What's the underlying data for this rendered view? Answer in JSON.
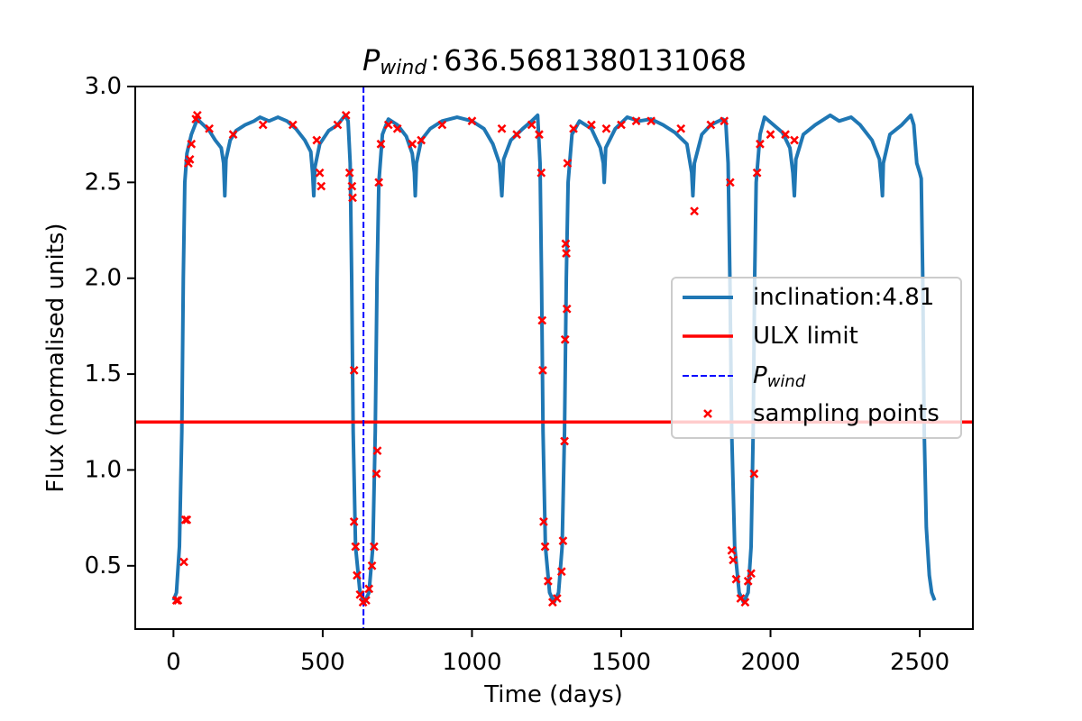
{
  "chart_data": {
    "type": "line",
    "title": {
      "symbol": "P",
      "subscript": "wind",
      "separator": ":"
    },
    "xlabel": "Time (days)",
    "ylabel": "Flux (normalised units)",
    "xlim": [
      -128,
      2678
    ],
    "ylim": [
      0.17,
      3.0
    ],
    "xticks": [
      0,
      500,
      1000,
      1500,
      2000,
      2500
    ],
    "yticks": [
      0.5,
      {
        "value": 1,
        "label": "1.0"
      },
      1.5,
      {
        "value": 2,
        "label": "2.0"
      },
      2.5,
      {
        "value": 3,
        "label": "3.0"
      }
    ],
    "legend": "center right",
    "series": [
      {
        "name": "inclination:4.81",
        "color": "#1f77b4",
        "x": [
          0,
          10,
          20,
          28,
          33,
          38,
          45,
          60,
          80,
          100,
          120,
          140,
          160,
          168,
          172,
          176,
          190,
          210,
          240,
          270,
          290,
          320,
          350,
          380,
          410,
          440,
          460,
          466,
          470,
          474,
          490,
          520,
          550,
          575,
          585,
          592,
          597,
          602,
          610,
          625,
          640,
          655,
          668,
          676,
          682,
          688,
          700,
          720,
          750,
          780,
          800,
          807,
          810,
          814,
          830,
          860,
          900,
          950,
          1000,
          1040,
          1070,
          1092,
          1100,
          1106,
          1130,
          1170,
          1200,
          1220,
          1228,
          1233,
          1238,
          1246,
          1260,
          1275,
          1290,
          1302,
          1310,
          1316,
          1322,
          1335,
          1360,
          1400,
          1430,
          1440,
          1443,
          1448,
          1480,
          1520,
          1560,
          1600,
          1640,
          1680,
          1720,
          1736,
          1740,
          1745,
          1770,
          1800,
          1840,
          1850,
          1858,
          1864,
          1870,
          1880,
          1895,
          1910,
          1925,
          1935,
          1942,
          1947,
          1952,
          1965,
          1980,
          2010,
          2040,
          2065,
          2075,
          2080,
          2085,
          2110,
          2150,
          2200,
          2230,
          2270,
          2300,
          2340,
          2365,
          2372,
          2375,
          2378,
          2400,
          2440,
          2470,
          2480,
          2490,
          2500,
          2505,
          2510,
          2515,
          2522,
          2532,
          2540,
          2550
        ],
        "values": [
          0.32,
          0.36,
          0.6,
          1.2,
          2.0,
          2.5,
          2.65,
          2.75,
          2.83,
          2.8,
          2.77,
          2.72,
          2.68,
          2.6,
          2.43,
          2.62,
          2.72,
          2.77,
          2.8,
          2.82,
          2.84,
          2.82,
          2.84,
          2.82,
          2.78,
          2.72,
          2.66,
          2.55,
          2.43,
          2.58,
          2.7,
          2.77,
          2.8,
          2.85,
          2.82,
          2.6,
          2.0,
          1.2,
          0.6,
          0.36,
          0.31,
          0.36,
          0.6,
          1.2,
          2.0,
          2.5,
          2.75,
          2.83,
          2.8,
          2.74,
          2.65,
          2.55,
          2.43,
          2.6,
          2.72,
          2.78,
          2.82,
          2.84,
          2.82,
          2.78,
          2.7,
          2.6,
          2.43,
          2.62,
          2.72,
          2.78,
          2.82,
          2.85,
          2.6,
          2.0,
          1.2,
          0.6,
          0.36,
          0.31,
          0.36,
          0.6,
          1.2,
          2.0,
          2.5,
          2.75,
          2.82,
          2.78,
          2.68,
          2.6,
          2.5,
          2.68,
          2.78,
          2.84,
          2.82,
          2.83,
          2.8,
          2.76,
          2.7,
          2.55,
          2.43,
          2.6,
          2.75,
          2.8,
          2.83,
          2.82,
          2.6,
          2.0,
          1.2,
          0.6,
          0.36,
          0.31,
          0.36,
          0.6,
          1.2,
          2.0,
          2.5,
          2.75,
          2.84,
          2.8,
          2.76,
          2.68,
          2.55,
          2.43,
          2.62,
          2.75,
          2.8,
          2.85,
          2.82,
          2.84,
          2.8,
          2.72,
          2.62,
          2.5,
          2.43,
          2.6,
          2.75,
          2.8,
          2.85,
          2.8,
          2.6,
          2.55,
          2.52,
          2.0,
          1.2,
          0.7,
          0.45,
          0.36,
          0.32
        ]
      }
    ],
    "hline": {
      "name": "ULX limit",
      "y": 1.25,
      "color": "red"
    },
    "vline": {
      "name": {
        "symbol": "P",
        "subscript": "wind"
      },
      "x": 636.5681380131068,
      "color": "blue"
    },
    "scatter": {
      "name": "sampling points",
      "color": "red",
      "x": [
        10,
        15,
        35,
        40,
        45,
        50,
        55,
        60,
        75,
        80,
        120,
        200,
        300,
        400,
        480,
        490,
        495,
        550,
        578,
        590,
        598,
        600,
        605,
        605,
        610,
        615,
        625,
        635,
        645,
        655,
        665,
        672,
        680,
        683,
        688,
        695,
        720,
        750,
        800,
        830,
        900,
        1000,
        1100,
        1150,
        1200,
        1225,
        1232,
        1235,
        1237,
        1240,
        1245,
        1255,
        1270,
        1285,
        1300,
        1305,
        1310,
        1312,
        1314,
        1316,
        1318,
        1320,
        1340,
        1400,
        1450,
        1500,
        1550,
        1600,
        1700,
        1745,
        1800,
        1845,
        1865,
        1870,
        1875,
        1885,
        1900,
        1915,
        1925,
        1935,
        1945,
        1955,
        1965,
        2000,
        2050,
        2080
      ],
      "values": [
        0.32,
        0.32,
        0.52,
        0.74,
        0.74,
        2.6,
        2.62,
        2.7,
        2.83,
        2.85,
        2.78,
        2.75,
        2.8,
        2.8,
        2.72,
        2.55,
        2.48,
        2.8,
        2.85,
        2.55,
        2.48,
        2.42,
        1.52,
        0.73,
        0.6,
        0.45,
        0.35,
        0.31,
        0.32,
        0.38,
        0.5,
        0.6,
        0.98,
        1.1,
        2.5,
        2.7,
        2.8,
        2.78,
        2.7,
        2.72,
        2.8,
        2.82,
        2.78,
        2.75,
        2.8,
        2.75,
        2.55,
        1.78,
        1.52,
        0.73,
        0.6,
        0.42,
        0.31,
        0.33,
        0.47,
        0.63,
        1.15,
        1.68,
        2.18,
        2.13,
        1.84,
        2.6,
        2.78,
        2.8,
        2.78,
        2.8,
        2.82,
        2.82,
        2.78,
        2.35,
        2.8,
        2.82,
        2.5,
        0.58,
        0.53,
        0.43,
        0.33,
        0.31,
        0.42,
        0.46,
        0.98,
        2.55,
        2.7,
        2.75,
        2.75,
        2.72
      ]
    }
  }
}
